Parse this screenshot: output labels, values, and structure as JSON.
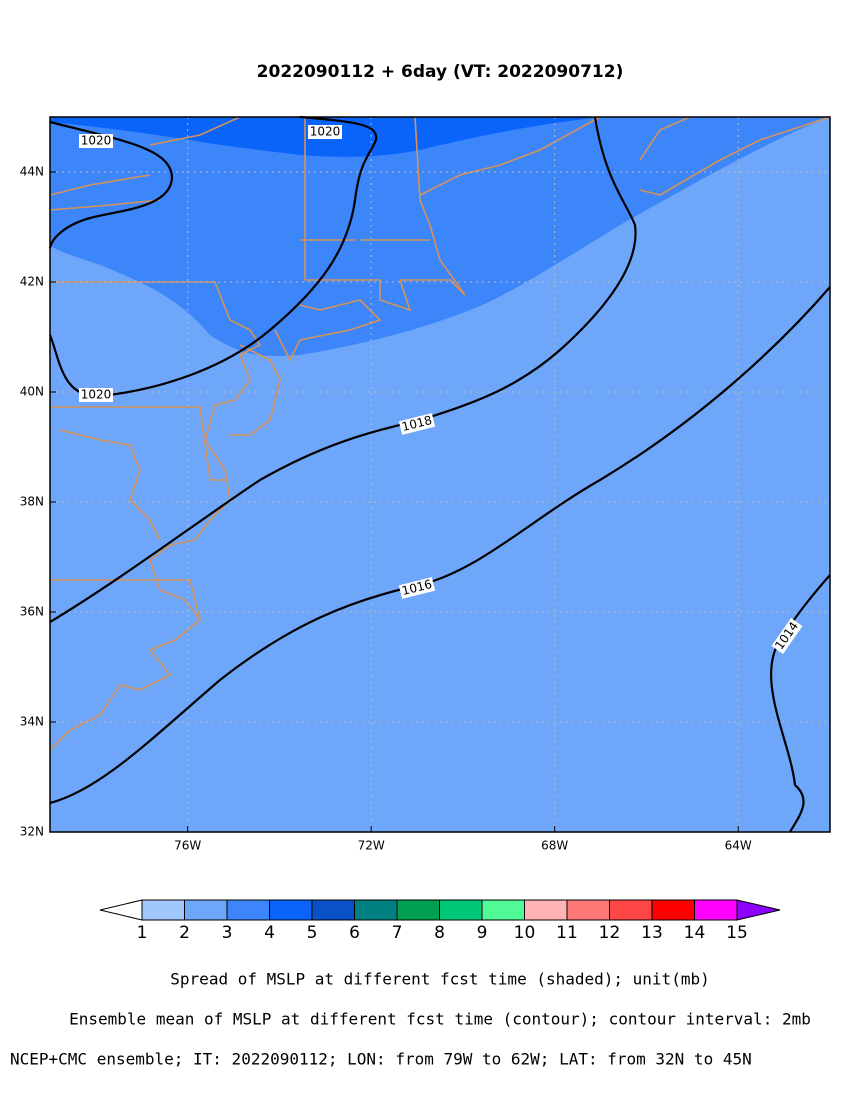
{
  "title": "2022090112 + 6day (VT: 2022090712)",
  "map": {
    "xlim": [
      -79,
      -62
    ],
    "ylim": [
      32,
      45
    ],
    "xticks": [
      {
        "value": -76,
        "label": "76W"
      },
      {
        "value": -72,
        "label": "72W"
      },
      {
        "value": -68,
        "label": "68W"
      },
      {
        "value": -64,
        "label": "64W"
      }
    ],
    "yticks": [
      {
        "value": 32,
        "label": "32N"
      },
      {
        "value": 34,
        "label": "34N"
      },
      {
        "value": 36,
        "label": "36N"
      },
      {
        "value": 38,
        "label": "38N"
      },
      {
        "value": 40,
        "label": "40N"
      },
      {
        "value": 42,
        "label": "42N"
      },
      {
        "value": 44,
        "label": "44N"
      }
    ],
    "contour_levels": [
      1020,
      1018,
      1016,
      1014
    ],
    "shaded_levels": [
      2,
      3,
      4
    ]
  },
  "colorbar": {
    "levels": [
      1,
      2,
      3,
      4,
      5,
      6,
      7,
      8,
      9,
      10,
      11,
      12,
      13,
      14,
      15
    ],
    "colors": [
      "#a0c8ff",
      "#6ea6fa",
      "#3c86fa",
      "#0a64fa",
      "#0a50c8",
      "#008080",
      "#00a050",
      "#00c878",
      "#50fa96",
      "#ffb4b4",
      "#ff7878",
      "#ff4646",
      "#ff0000",
      "#ff00ff"
    ],
    "under_color": "#ffffff",
    "over_color": "#8c00ff"
  },
  "captions": [
    "Spread of MSLP at different fcst time (shaded); unit(mb)",
    "Ensemble mean of MSLP at different fcst time (contour); contour interval: 2mb",
    "NCEP+CMC ensemble; IT: 2022090112; LON: from 79W to 62W; LAT: from 32N to 45N"
  ]
}
